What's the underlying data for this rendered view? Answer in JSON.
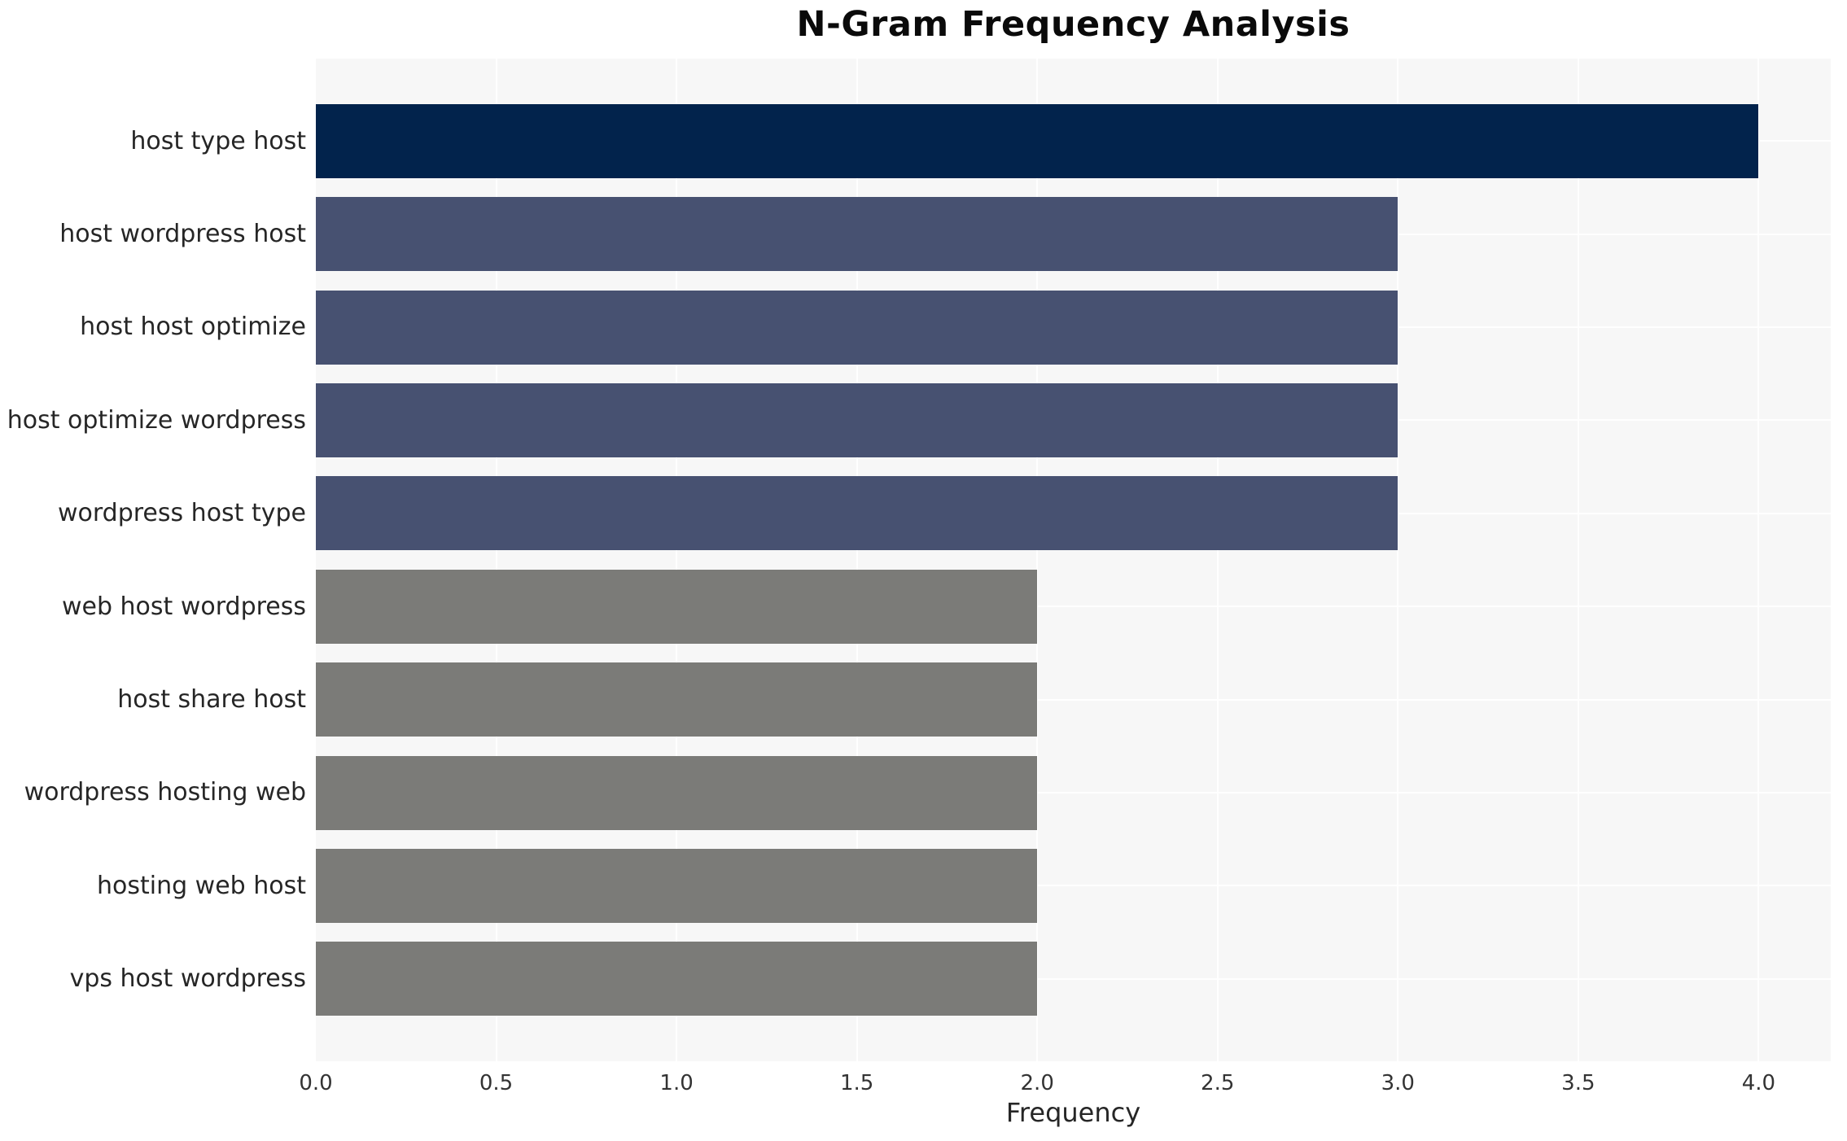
{
  "chart_data": {
    "type": "bar",
    "orientation": "horizontal",
    "title": "N-Gram Frequency Analysis",
    "xlabel": "Frequency",
    "ylabel": "",
    "categories": [
      "host type host",
      "host wordpress host",
      "host host optimize",
      "host optimize wordpress",
      "wordpress host type",
      "web host wordpress",
      "host share host",
      "wordpress hosting web",
      "hosting web host",
      "vps host wordpress"
    ],
    "values": [
      4,
      3,
      3,
      3,
      3,
      2,
      2,
      2,
      2,
      2
    ],
    "bar_colors": [
      "#02234c",
      "#475171",
      "#475171",
      "#475171",
      "#475171",
      "#7b7b78",
      "#7b7b78",
      "#7b7b78",
      "#7b7b78",
      "#7b7b78"
    ],
    "xlim": [
      0,
      4.2
    ],
    "xticks": [
      0.0,
      0.5,
      1.0,
      1.5,
      2.0,
      2.5,
      3.0,
      3.5,
      4.0
    ],
    "xtick_labels": [
      "0.0",
      "0.5",
      "1.0",
      "1.5",
      "2.0",
      "2.5",
      "3.0",
      "3.5",
      "4.0"
    ],
    "grid": true,
    "legend": null,
    "plot_background": "#f7f7f7",
    "gridline_color": "#ffffff",
    "title_color": "#0a0a0a",
    "label_color": "#262626",
    "tick_color": "#333333"
  }
}
